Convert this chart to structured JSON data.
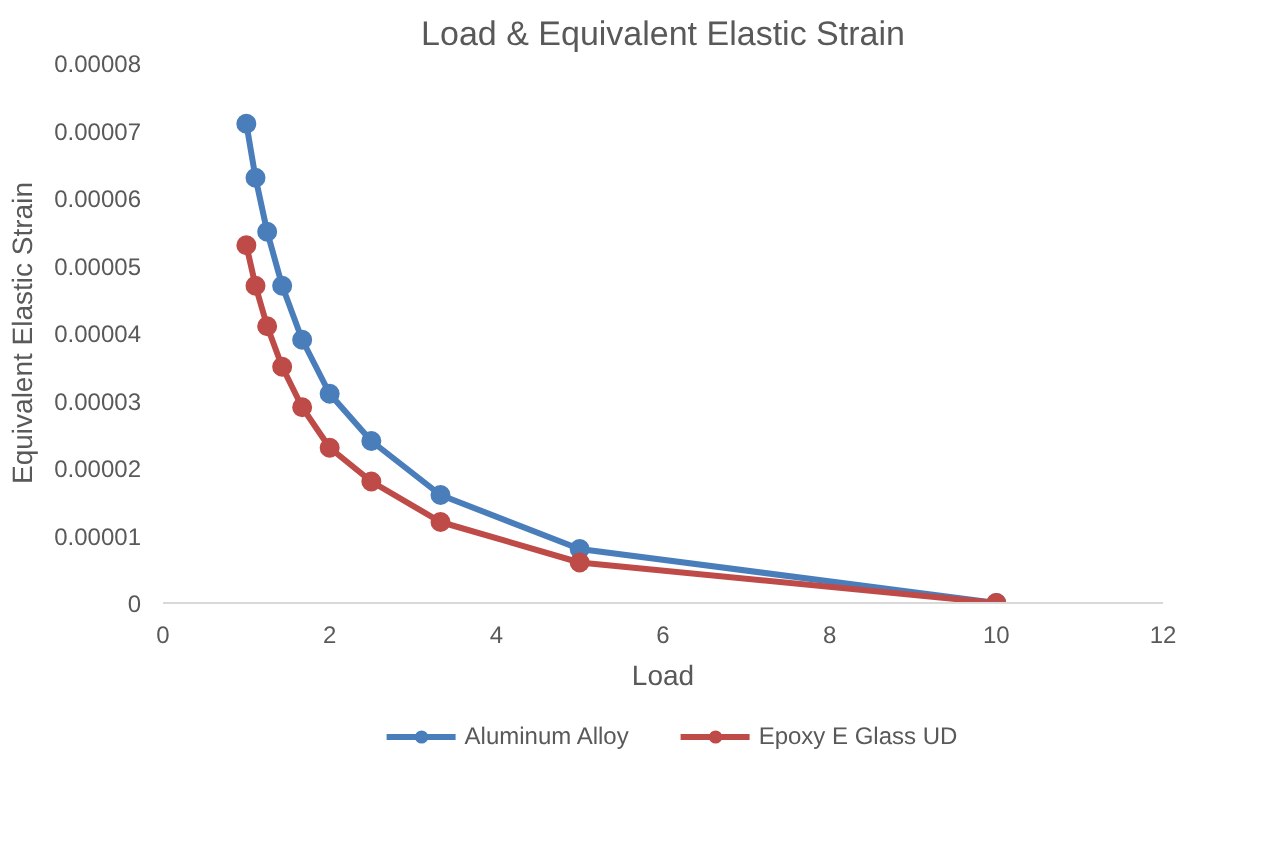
{
  "chart_data": {
    "type": "line",
    "title": "Load & Equivalent Elastic Strain",
    "xlabel": "Load",
    "ylabel": "Equivalent Elastic Strain",
    "x": [
      1,
      1.11,
      1.25,
      1.43,
      1.67,
      2,
      2.5,
      3.33,
      5,
      10
    ],
    "series": [
      {
        "name": "Aluminum Alloy",
        "color": "#4a7ebb",
        "values": [
          7.1e-05,
          6.3e-05,
          5.5e-05,
          4.7e-05,
          3.9e-05,
          3.1e-05,
          2.4e-05,
          1.6e-05,
          8e-06,
          0
        ]
      },
      {
        "name": "Epoxy E Glass UD",
        "color": "#be4b48",
        "values": [
          5.3e-05,
          4.7e-05,
          4.1e-05,
          3.5e-05,
          2.9e-05,
          2.3e-05,
          1.8e-05,
          1.2e-05,
          6e-06,
          0
        ]
      }
    ],
    "xlim": [
      0,
      12
    ],
    "xticks": [
      0,
      2,
      4,
      6,
      8,
      10,
      12
    ],
    "ylim": [
      0,
      8e-05
    ],
    "yticks": [
      {
        "value": 0,
        "label": "0"
      },
      {
        "value": 1e-05,
        "label": "0.00001"
      },
      {
        "value": 2e-05,
        "label": "0.00002"
      },
      {
        "value": 3e-05,
        "label": "0.00003"
      },
      {
        "value": 4e-05,
        "label": "0.00004"
      },
      {
        "value": 5e-05,
        "label": "0.00005"
      },
      {
        "value": 6e-05,
        "label": "0.00006"
      },
      {
        "value": 7e-05,
        "label": "0.00007"
      },
      {
        "value": 8e-05,
        "label": "0.00008"
      }
    ],
    "grid": false,
    "legend": "bottom",
    "marker": "circle",
    "line_style": "solid"
  }
}
